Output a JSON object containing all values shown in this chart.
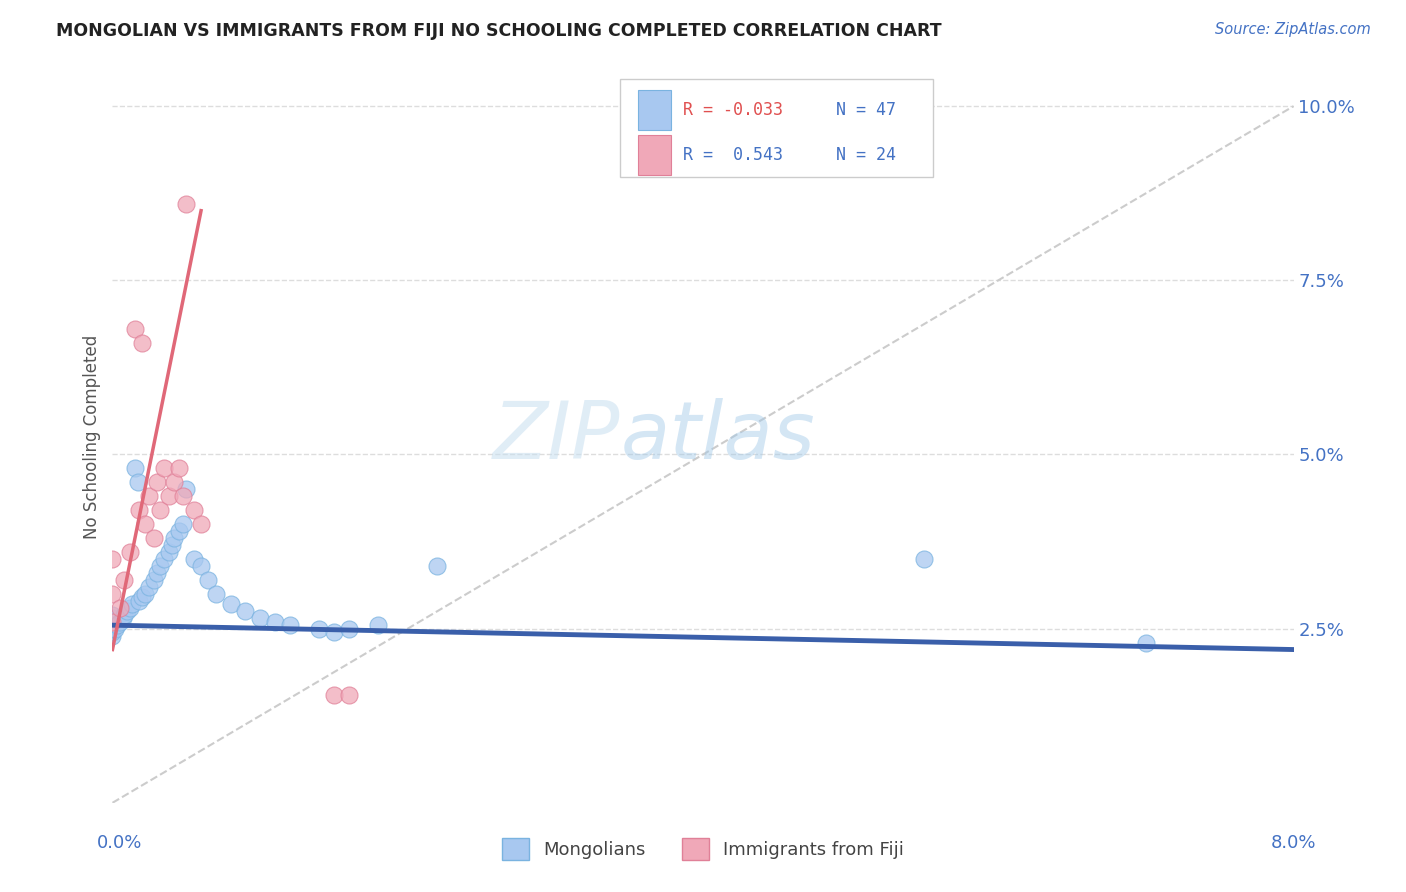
{
  "title": "MONGOLIAN VS IMMIGRANTS FROM FIJI NO SCHOOLING COMPLETED CORRELATION CHART",
  "source": "Source: ZipAtlas.com",
  "ylabel": "No Schooling Completed",
  "xlim": [
    0.0,
    8.0
  ],
  "ylim": [
    0.0,
    10.5
  ],
  "background_color": "#ffffff",
  "watermark_zip": "ZIP",
  "watermark_atlas": "atlas",
  "grid_color": "#dddddd",
  "grid_linestyle": "--",
  "title_color": "#222222",
  "source_color": "#4472c4",
  "tick_label_color": "#4472c4",
  "mongolian_color": "#a8c8f0",
  "mongolian_edge": "#7ab3e0",
  "fiji_color": "#f0a8b8",
  "fiji_edge": "#e08098",
  "blue_trend_color": "#3a5faa",
  "pink_trend_color": "#e06878",
  "ref_line_color": "#cccccc",
  "legend_R1": "R = -0.033",
  "legend_N1": "N = 47",
  "legend_R2": "R =  0.543",
  "legend_N2": "N = 24",
  "mongolian_x": [
    0.0,
    0.0,
    0.0,
    0.0,
    0.0,
    0.0,
    0.0,
    0.02,
    0.03,
    0.05,
    0.07,
    0.08,
    0.1,
    0.12,
    0.13,
    0.15,
    0.17,
    0.18,
    0.2,
    0.22,
    0.25,
    0.28,
    0.3,
    0.32,
    0.35,
    0.38,
    0.4,
    0.42,
    0.45,
    0.48,
    0.5,
    0.55,
    0.6,
    0.65,
    0.7,
    0.8,
    0.9,
    1.0,
    1.1,
    1.2,
    1.4,
    1.5,
    1.6,
    1.8,
    2.2,
    5.5,
    7.0
  ],
  "mongolian_y": [
    2.4,
    2.45,
    2.5,
    2.55,
    2.6,
    2.65,
    2.7,
    2.5,
    2.55,
    2.6,
    2.65,
    2.7,
    2.75,
    2.8,
    2.85,
    4.8,
    4.6,
    2.9,
    2.95,
    3.0,
    3.1,
    3.2,
    3.3,
    3.4,
    3.5,
    3.6,
    3.7,
    3.8,
    3.9,
    4.0,
    4.5,
    3.5,
    3.4,
    3.2,
    3.0,
    2.85,
    2.75,
    2.65,
    2.6,
    2.55,
    2.5,
    2.45,
    2.5,
    2.55,
    3.4,
    3.5,
    2.3
  ],
  "fiji_x": [
    0.0,
    0.0,
    0.0,
    0.05,
    0.08,
    0.12,
    0.15,
    0.18,
    0.2,
    0.22,
    0.25,
    0.28,
    0.3,
    0.32,
    0.35,
    0.38,
    0.42,
    0.45,
    0.48,
    0.5,
    0.55,
    0.6,
    1.5,
    1.6
  ],
  "fiji_y": [
    2.6,
    3.0,
    3.5,
    2.8,
    3.2,
    3.6,
    6.8,
    4.2,
    6.6,
    4.0,
    4.4,
    3.8,
    4.6,
    4.2,
    4.8,
    4.4,
    4.6,
    4.8,
    4.4,
    8.6,
    4.2,
    4.0,
    1.55,
    1.55
  ],
  "blue_trend_x": [
    0.0,
    8.0
  ],
  "blue_trend_y": [
    2.55,
    2.2
  ],
  "pink_trend_x": [
    0.0,
    0.6
  ],
  "pink_trend_y": [
    2.2,
    8.5
  ],
  "ref_line_x": [
    0.0,
    8.0
  ],
  "ref_line_y": [
    0.0,
    10.0
  ]
}
